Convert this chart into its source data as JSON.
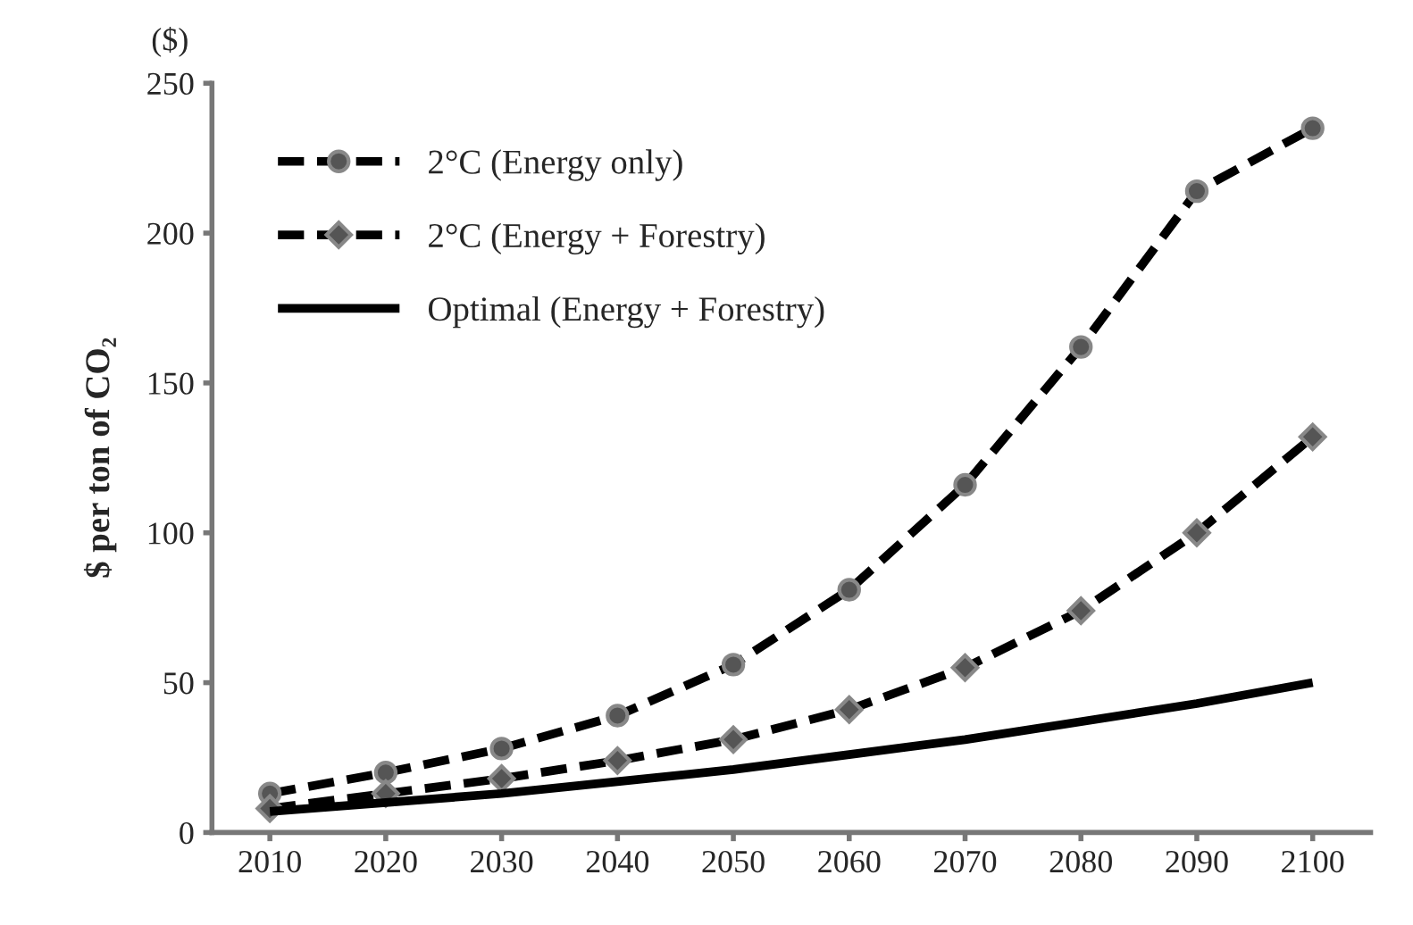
{
  "chart_data": {
    "type": "line",
    "ylabel": "$ per ton of CO₂",
    "annotations": [
      "($)"
    ],
    "categories": [
      "2010",
      "2020",
      "2030",
      "2040",
      "2050",
      "2060",
      "2070",
      "2080",
      "2090",
      "2100"
    ],
    "ylim": [
      0,
      250
    ],
    "yticks": [
      0,
      50,
      100,
      150,
      200,
      250
    ],
    "grid": false,
    "legend": "top left",
    "series": [
      {
        "name": "2°C (Energy only)",
        "color": "#000000",
        "marker": "circle",
        "line_style": "dashed",
        "values": [
          13,
          20,
          28,
          39,
          56,
          81,
          116,
          162,
          214,
          235
        ]
      },
      {
        "name": "2°C (Energy + Forestry)",
        "color": "#000000",
        "marker": "diamond",
        "line_style": "dashed",
        "values": [
          8,
          13,
          18,
          24,
          31,
          41,
          55,
          74,
          100,
          132
        ]
      },
      {
        "name": "Optimal (Energy + Forestry)",
        "color": "#000000",
        "marker": "none",
        "line_style": "solid",
        "values": [
          7,
          10,
          13,
          17,
          21,
          26,
          31,
          37,
          43,
          50
        ]
      }
    ]
  }
}
